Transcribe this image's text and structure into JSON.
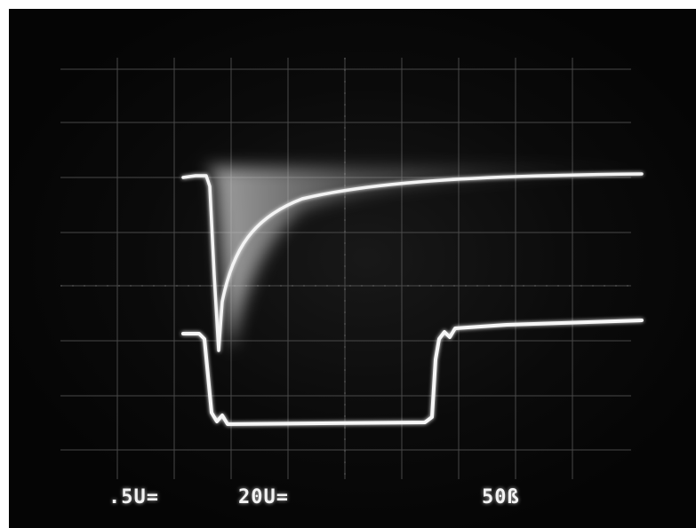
{
  "scope": {
    "ch1_scale": ".5U=",
    "ch2_scale": "20U=",
    "timebase": "50ß"
  },
  "colors": {
    "screen": "#050505",
    "grid": "#6a6a6a",
    "trace": "#f4f4f4"
  }
}
